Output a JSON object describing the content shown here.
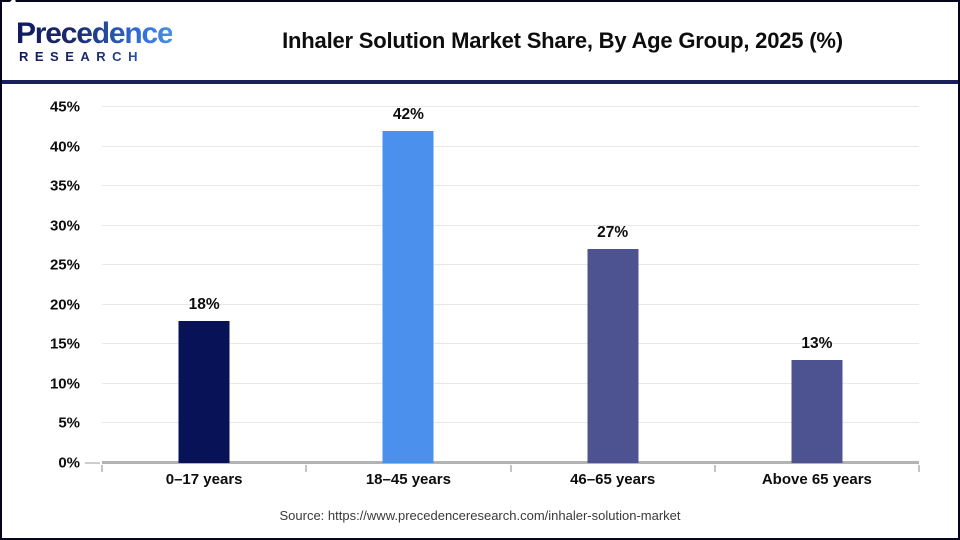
{
  "logo": {
    "brand_top": "Precedence",
    "brand_bottom": "RESEARCH",
    "navy": "#1b2a6b",
    "blue": "#4a90e8"
  },
  "header": {
    "title": "Inhaler Solution Market Share, By Age Group, 2025 (%)"
  },
  "chart_data": {
    "type": "bar",
    "title": "Inhaler Solution Market Share, By Age Group, 2025 (%)",
    "categories": [
      "0–17 years",
      "18–45 years",
      "46–65 years",
      "Above 65 years"
    ],
    "values": [
      18,
      42,
      27,
      13
    ],
    "value_labels": [
      "18%",
      "42%",
      "27%",
      "13%"
    ],
    "bar_colors": [
      "#071257",
      "#4a90ec",
      "#4d5390",
      "#4d5390"
    ],
    "xlabel": "",
    "ylabel": "",
    "ylim": [
      0,
      45
    ],
    "ytick_values": [
      45,
      40,
      35,
      30,
      25,
      20,
      15,
      10,
      5,
      0
    ],
    "ytick_labels": [
      "45%",
      "40%",
      "35%",
      "30%",
      "25%",
      "20%",
      "15%",
      "10%",
      "5%",
      "0%"
    ],
    "grid": true,
    "legend": false,
    "gridline_color": "#e8e8e8",
    "baseline_color": "#b3b3b3"
  },
  "footer": {
    "source": "Source: https://www.precedenceresearch.com/inhaler-solution-market"
  }
}
